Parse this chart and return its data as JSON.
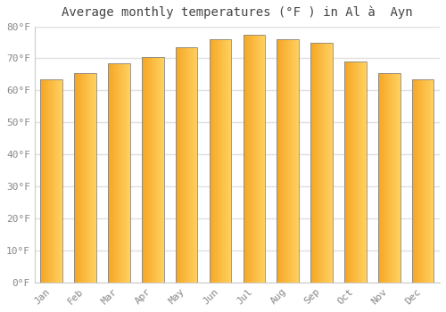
{
  "title": "Average monthly temperatures (°F ) in Al à  Ayn",
  "months": [
    "Jan",
    "Feb",
    "Mar",
    "Apr",
    "May",
    "Jun",
    "Jul",
    "Aug",
    "Sep",
    "Oct",
    "Nov",
    "Dec"
  ],
  "values": [
    63.5,
    65.5,
    68.5,
    70.5,
    73.5,
    76.0,
    77.5,
    76.0,
    75.0,
    69.0,
    65.5,
    63.5
  ],
  "bar_color_left": "#F5A623",
  "bar_color_right": "#FFD060",
  "bar_edge_color": "#888888",
  "background_color": "#ffffff",
  "plot_bg_color": "#ffffff",
  "grid_color": "#e0e0e0",
  "text_color": "#888888",
  "ylim": [
    0,
    80
  ],
  "ytick_step": 10,
  "title_fontsize": 10,
  "tick_fontsize": 8,
  "font_family": "monospace"
}
